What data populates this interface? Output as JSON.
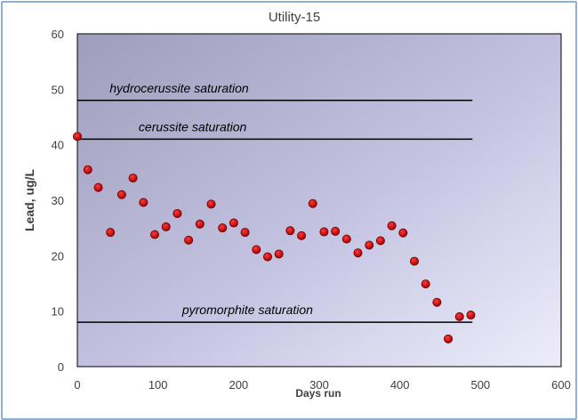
{
  "chart_data": {
    "type": "scatter",
    "title": "Utility-15",
    "xlabel": "Days run",
    "ylabel": "Lead, ug/L",
    "xlim": [
      0,
      600
    ],
    "ylim": [
      0,
      60
    ],
    "x_ticks": [
      0,
      100,
      200,
      300,
      400,
      500,
      600
    ],
    "y_ticks": [
      0,
      10,
      20,
      30,
      40,
      50,
      60
    ],
    "grid": false,
    "legend": "none",
    "marker_color": "#c00000",
    "series": [
      {
        "x": [
          0,
          13,
          26,
          41,
          55,
          69,
          82,
          96,
          110,
          124,
          138,
          152,
          166,
          180,
          194,
          208,
          222,
          236,
          250,
          264,
          278,
          292,
          306,
          320,
          334,
          348,
          362,
          376,
          390,
          404,
          418,
          432,
          446,
          460,
          474,
          488
        ],
        "values": [
          41.5,
          35.5,
          32.3,
          24.2,
          31.0,
          34.0,
          29.6,
          23.8,
          25.2,
          27.6,
          22.8,
          25.7,
          29.3,
          25.0,
          25.9,
          24.2,
          21.1,
          19.8,
          20.3,
          24.5,
          23.6,
          29.4,
          24.3,
          24.4,
          23.0,
          20.5,
          21.9,
          22.7,
          25.4,
          24.1,
          19.0,
          14.9,
          11.6,
          5.0,
          9.0,
          9.3
        ]
      }
    ],
    "annotations": [
      {
        "text": "hydrocerussite saturation",
        "y": 48,
        "x_start": 0,
        "x_end": 490,
        "label_x": 40
      },
      {
        "text": "cerussite saturation",
        "y": 41,
        "x_start": 0,
        "x_end": 490,
        "label_x": 76
      },
      {
        "text": "pyromorphite saturation",
        "y": 8,
        "x_start": 0,
        "x_end": 490,
        "label_x": 130
      }
    ]
  }
}
